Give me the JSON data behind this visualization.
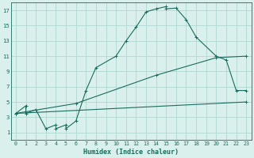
{
  "title": "",
  "xlabel": "Humidex (Indice chaleur)",
  "ylabel": "",
  "bg_color": "#daf0ec",
  "grid_color": "#b0d8d2",
  "line_color": "#1a6b5e",
  "xlim": [
    -0.5,
    23.5
  ],
  "ylim": [
    0,
    18
  ],
  "xticks": [
    0,
    1,
    2,
    3,
    4,
    5,
    6,
    7,
    8,
    9,
    10,
    11,
    12,
    13,
    14,
    15,
    16,
    17,
    18,
    19,
    20,
    21,
    22,
    23
  ],
  "yticks": [
    1,
    3,
    5,
    7,
    9,
    11,
    13,
    15,
    17
  ],
  "curve1_x": [
    0,
    1,
    1,
    2,
    3,
    4,
    4,
    5,
    5,
    6,
    7,
    8,
    10,
    11,
    12,
    13,
    14,
    15,
    15,
    16,
    17,
    18,
    20,
    21,
    22,
    23
  ],
  "curve1_y": [
    3.5,
    4.5,
    3.5,
    4.0,
    1.5,
    2.0,
    1.5,
    2.0,
    1.5,
    2.5,
    6.5,
    9.5,
    11.0,
    13.0,
    14.8,
    16.8,
    17.2,
    17.5,
    17.2,
    17.3,
    15.8,
    13.5,
    11.0,
    10.5,
    6.5,
    6.5
  ],
  "line2_x": [
    0,
    23
  ],
  "line2_y": [
    3.5,
    5.0
  ],
  "line3_x": [
    0,
    6,
    14,
    20,
    23
  ],
  "line3_y": [
    3.5,
    4.8,
    8.5,
    10.8,
    11.0
  ],
  "marker": "+"
}
